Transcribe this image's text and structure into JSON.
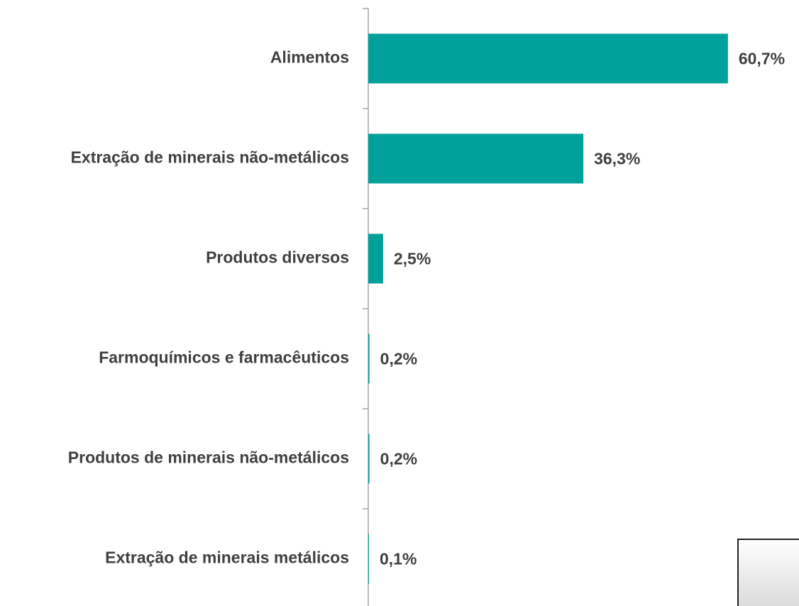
{
  "chart_data": {
    "type": "bar",
    "orientation": "horizontal",
    "categories": [
      "Alimentos",
      "Extração de minerais não-metálicos",
      "Produtos diversos",
      "Farmoquímicos e farmacêuticos",
      "Produtos de minerais não-metálicos",
      "Extração de minerais metálicos"
    ],
    "values": [
      60.7,
      36.3,
      2.5,
      0.2,
      0.2,
      0.1
    ],
    "value_labels": [
      "60,7%",
      "36,3%",
      "2,5%",
      "0,2%",
      "0,2%",
      "0,1%"
    ],
    "color": "#00a19a"
  }
}
